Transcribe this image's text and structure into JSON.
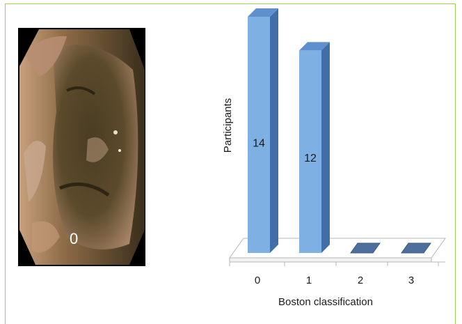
{
  "image": {
    "overlay_label": "0"
  },
  "colors": {
    "frame_border": "#9ed04f",
    "bar_front": "#7fb0e3",
    "bar_side": "#3f6ea8",
    "bar_top": "#5f8fcc",
    "floor": "#ffffff",
    "floor_edge": "#b7b7b7"
  },
  "chart_data": {
    "type": "bar",
    "style": "3d-column",
    "categories": [
      "0",
      "1",
      "2",
      "3"
    ],
    "values": [
      14,
      12,
      0,
      0
    ],
    "data_labels": [
      "14",
      "12",
      "",
      ""
    ],
    "xlabel": "Boston classification",
    "ylabel": "Participants",
    "ylim": [
      0,
      14
    ],
    "grid": false,
    "legend": "none"
  }
}
